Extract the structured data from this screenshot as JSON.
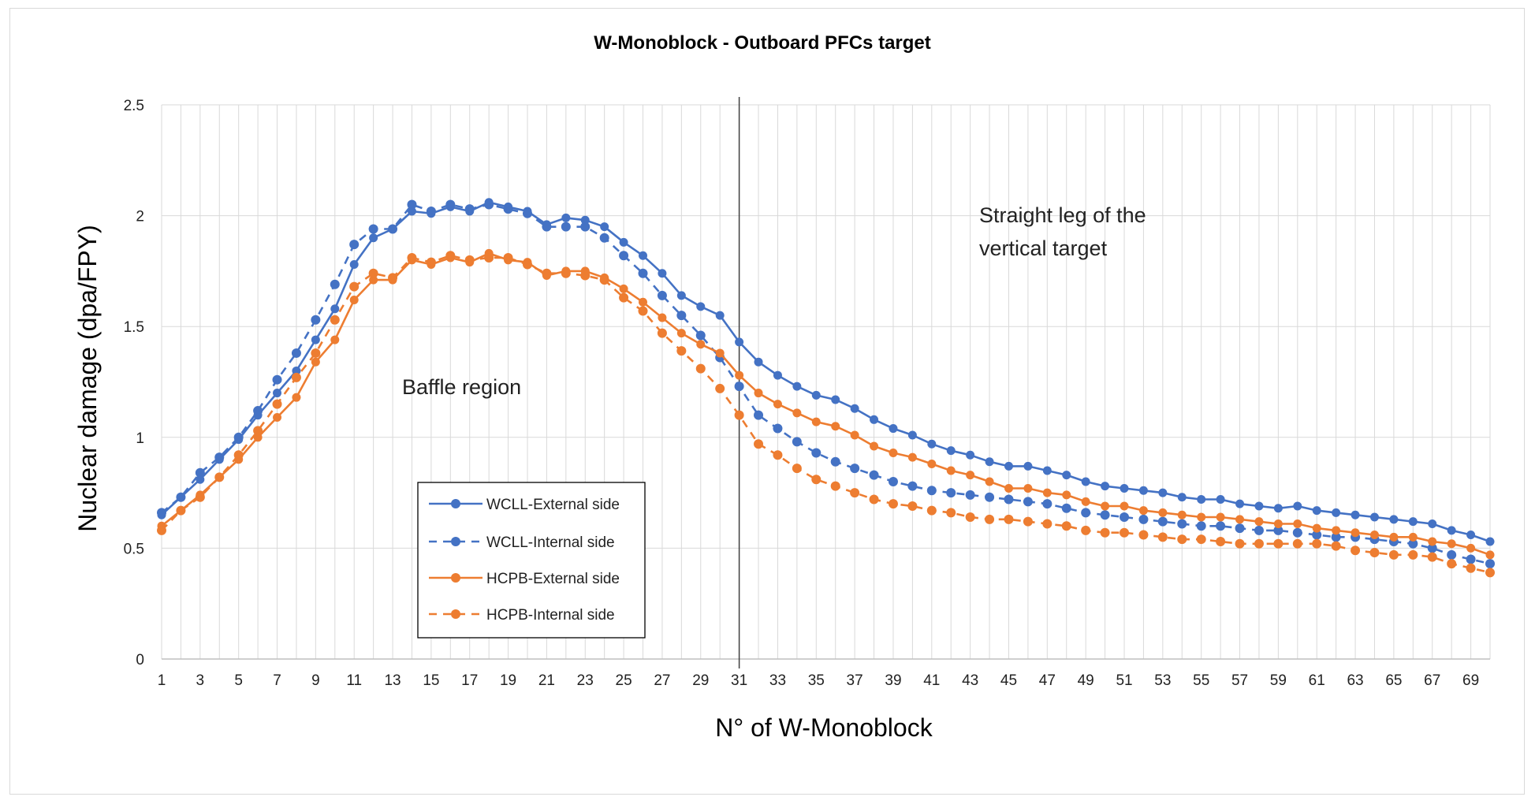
{
  "chart_data": {
    "type": "line",
    "title": "W-Monoblock - Outboard PFCs target",
    "xlabel": "N° of W-Monoblock",
    "ylabel": "Nuclear damage (dpa/FPY)",
    "xlim": [
      1,
      70
    ],
    "ylim": [
      0,
      2.5
    ],
    "x_ticks": [
      "1",
      "3",
      "5",
      "7",
      "9",
      "11",
      "13",
      "15",
      "17",
      "19",
      "21",
      "23",
      "25",
      "27",
      "29",
      "31",
      "33",
      "35",
      "37",
      "39",
      "41",
      "43",
      "45",
      "47",
      "49",
      "51",
      "53",
      "55",
      "57",
      "59",
      "61",
      "63",
      "65",
      "67",
      "69"
    ],
    "y_ticks": [
      "0",
      "0.5",
      "1",
      "1.5",
      "2",
      "2.5"
    ],
    "grid": true,
    "legend_position": "lower-left",
    "x": [
      1,
      2,
      3,
      4,
      5,
      6,
      7,
      8,
      9,
      10,
      11,
      12,
      13,
      14,
      15,
      16,
      17,
      18,
      19,
      20,
      21,
      22,
      23,
      24,
      25,
      26,
      27,
      28,
      29,
      30,
      31,
      32,
      33,
      34,
      35,
      36,
      37,
      38,
      39,
      40,
      41,
      42,
      43,
      44,
      45,
      46,
      47,
      48,
      49,
      50,
      51,
      52,
      53,
      54,
      55,
      56,
      57,
      58,
      59,
      60,
      61,
      62,
      63,
      64,
      65,
      66,
      67,
      68,
      69,
      70
    ],
    "vertical_line_x": 31,
    "annotations": [
      "Baffle region",
      "Straight leg of the",
      "vertical target"
    ],
    "series": [
      {
        "name": "WCLL-External side",
        "color": "#4472c4",
        "style": "solid",
        "values": [
          0.65,
          0.73,
          0.81,
          0.9,
          0.99,
          1.1,
          1.2,
          1.3,
          1.44,
          1.58,
          1.78,
          1.9,
          1.94,
          2.02,
          2.01,
          2.04,
          2.02,
          2.06,
          2.04,
          2.02,
          1.96,
          1.99,
          1.98,
          1.95,
          1.88,
          1.82,
          1.74,
          1.64,
          1.59,
          1.55,
          1.43,
          1.34,
          1.28,
          1.23,
          1.19,
          1.17,
          1.13,
          1.08,
          1.04,
          1.01,
          0.97,
          0.94,
          0.92,
          0.89,
          0.87,
          0.87,
          0.85,
          0.83,
          0.8,
          0.78,
          0.77,
          0.76,
          0.75,
          0.73,
          0.72,
          0.72,
          0.7,
          0.69,
          0.68,
          0.69,
          0.67,
          0.66,
          0.65,
          0.64,
          0.63,
          0.62,
          0.61,
          0.58,
          0.56,
          0.53
        ]
      },
      {
        "name": "WCLL-Internal side",
        "color": "#4472c4",
        "style": "dotted",
        "values": [
          0.66,
          0.73,
          0.84,
          0.91,
          1.0,
          1.12,
          1.26,
          1.38,
          1.53,
          1.69,
          1.87,
          1.94,
          1.94,
          2.05,
          2.02,
          2.05,
          2.03,
          2.05,
          2.03,
          2.01,
          1.95,
          1.95,
          1.95,
          1.9,
          1.82,
          1.74,
          1.64,
          1.55,
          1.46,
          1.36,
          1.23,
          1.1,
          1.04,
          0.98,
          0.93,
          0.89,
          0.86,
          0.83,
          0.8,
          0.78,
          0.76,
          0.75,
          0.74,
          0.73,
          0.72,
          0.71,
          0.7,
          0.68,
          0.66,
          0.65,
          0.64,
          0.63,
          0.62,
          0.61,
          0.6,
          0.6,
          0.59,
          0.58,
          0.58,
          0.57,
          0.56,
          0.55,
          0.55,
          0.54,
          0.53,
          0.52,
          0.5,
          0.47,
          0.45,
          0.43
        ]
      },
      {
        "name": "HCPB-External side",
        "color": "#ed7d31",
        "style": "solid",
        "values": [
          0.6,
          0.67,
          0.74,
          0.82,
          0.9,
          1.0,
          1.09,
          1.18,
          1.34,
          1.44,
          1.62,
          1.71,
          1.71,
          1.8,
          1.78,
          1.81,
          1.79,
          1.83,
          1.8,
          1.79,
          1.73,
          1.75,
          1.75,
          1.72,
          1.67,
          1.61,
          1.54,
          1.47,
          1.42,
          1.38,
          1.28,
          1.2,
          1.15,
          1.11,
          1.07,
          1.05,
          1.01,
          0.96,
          0.93,
          0.91,
          0.88,
          0.85,
          0.83,
          0.8,
          0.77,
          0.77,
          0.75,
          0.74,
          0.71,
          0.69,
          0.69,
          0.67,
          0.66,
          0.65,
          0.64,
          0.64,
          0.63,
          0.62,
          0.61,
          0.61,
          0.59,
          0.58,
          0.57,
          0.56,
          0.55,
          0.55,
          0.53,
          0.52,
          0.5,
          0.47
        ]
      },
      {
        "name": "HCPB-Internal side",
        "color": "#ed7d31",
        "style": "dotted",
        "values": [
          0.58,
          0.67,
          0.73,
          0.82,
          0.92,
          1.03,
          1.15,
          1.27,
          1.38,
          1.53,
          1.68,
          1.74,
          1.72,
          1.81,
          1.79,
          1.82,
          1.8,
          1.81,
          1.81,
          1.78,
          1.74,
          1.74,
          1.73,
          1.71,
          1.63,
          1.57,
          1.47,
          1.39,
          1.31,
          1.22,
          1.1,
          0.97,
          0.92,
          0.86,
          0.81,
          0.78,
          0.75,
          0.72,
          0.7,
          0.69,
          0.67,
          0.66,
          0.64,
          0.63,
          0.63,
          0.62,
          0.61,
          0.6,
          0.58,
          0.57,
          0.57,
          0.56,
          0.55,
          0.54,
          0.54,
          0.53,
          0.52,
          0.52,
          0.52,
          0.52,
          0.52,
          0.51,
          0.49,
          0.48,
          0.47,
          0.47,
          0.46,
          0.43,
          0.41,
          0.39
        ]
      }
    ]
  }
}
